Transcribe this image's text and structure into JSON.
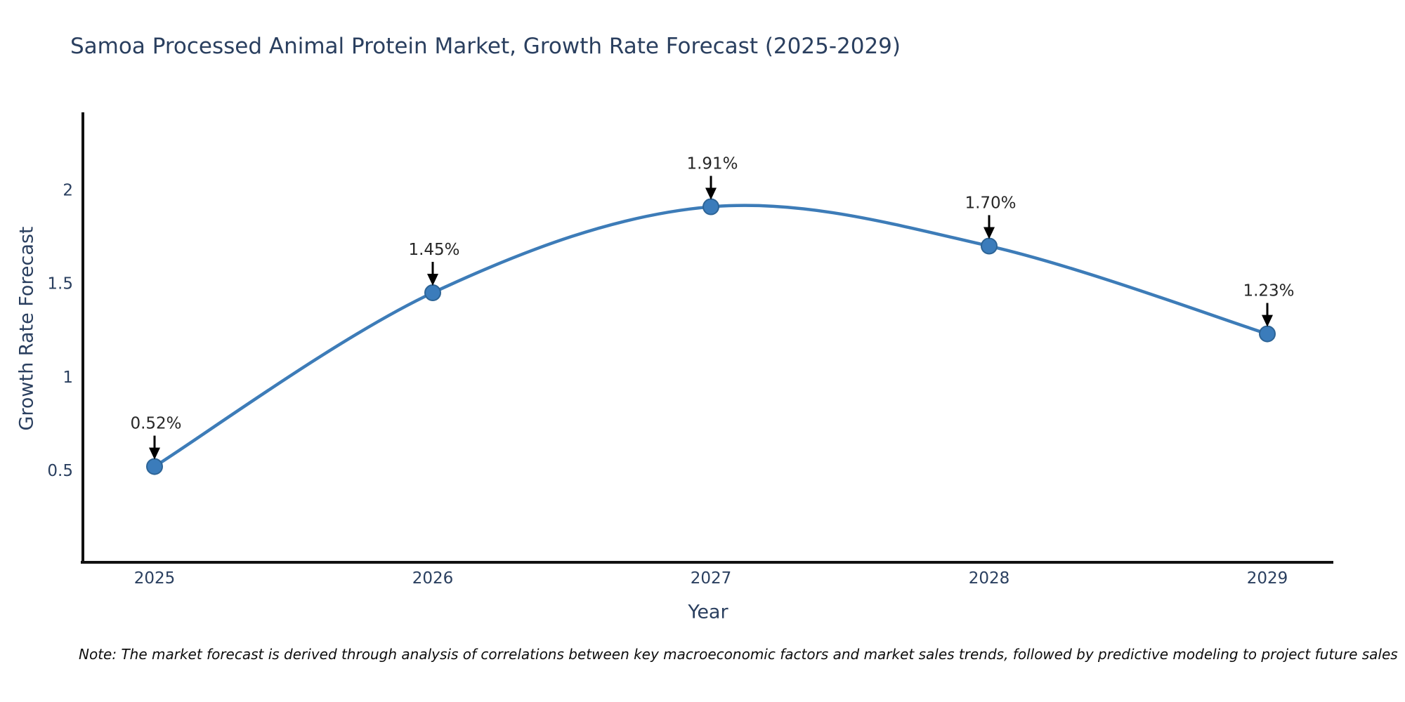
{
  "title": "Samoa Processed Animal Protein Market, Growth Rate Forecast (2025-2029)",
  "note": "Note: The market forecast is derived through analysis of correlations between key macroeconomic factors and market sales trends, followed by predictive modeling to project future sales",
  "chart_data": {
    "type": "line",
    "title": "Samoa Processed Animal Protein Market, Growth Rate Forecast (2025-2029)",
    "xlabel": "Year",
    "ylabel": "Growth Rate Forecast",
    "x": [
      "2025",
      "2026",
      "2027",
      "2028",
      "2029"
    ],
    "series": [
      {
        "name": "Growth Rate Forecast",
        "values": [
          0.52,
          1.45,
          1.91,
          1.7,
          1.23
        ]
      }
    ],
    "point_labels": [
      "0.52%",
      "1.45%",
      "1.91%",
      "1.70%",
      "1.23%"
    ],
    "yticks": [
      0.5,
      1,
      1.5,
      2
    ],
    "ylim": [
      0,
      2.42
    ],
    "grid": false,
    "legend_position": "none",
    "line_shape": "spline",
    "annotations_have_arrows": true,
    "colors": {
      "line": "#3d7cb8",
      "marker_fill": "#3b7cbb",
      "marker_edge": "#2d6496",
      "axis_line": "#111111",
      "tick_text": "#2a3f5f",
      "annotation_text": "#262626",
      "arrow": "#000000"
    }
  }
}
